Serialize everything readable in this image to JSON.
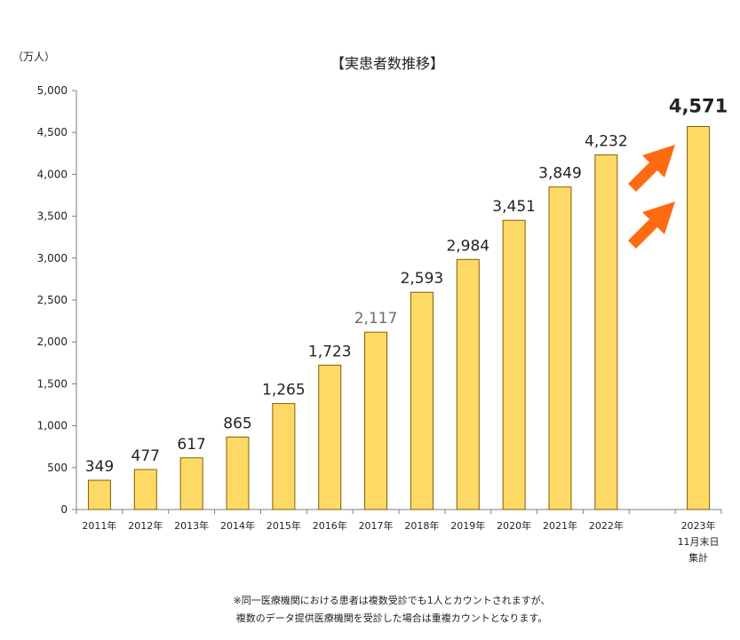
{
  "chart_data": {
    "type": "bar",
    "title": "【実患者数推移】",
    "unit_label": "（万人）",
    "ylim": [
      0,
      5000
    ],
    "yticks": [
      "0",
      "500",
      "1,000",
      "1,500",
      "2,000",
      "2,500",
      "3,000",
      "3,500",
      "4,000",
      "4,500",
      "5,000"
    ],
    "categories": [
      [
        "2011年"
      ],
      [
        "2012年"
      ],
      [
        "2013年"
      ],
      [
        "2014年"
      ],
      [
        "2015年"
      ],
      [
        "2016年"
      ],
      [
        "2017年"
      ],
      [
        "2018年"
      ],
      [
        "2019年"
      ],
      [
        "2020年"
      ],
      [
        "2021年"
      ],
      [
        "2022年"
      ],
      [
        ""
      ],
      [
        "2023年",
        "11月末日",
        "集計"
      ]
    ],
    "values": [
      349,
      477,
      617,
      865,
      1265,
      1723,
      2117,
      2593,
      2984,
      3451,
      3849,
      4232,
      null,
      4571
    ],
    "data_labels": [
      "349",
      "477",
      "617",
      "865",
      "1,265",
      "1,723",
      "2,117",
      "2,593",
      "2,984",
      "3,451",
      "3,849",
      "4,232",
      "",
      "4,571"
    ],
    "highlight_index": 13,
    "highlight_color": "#ee1111",
    "bar_color": "#ffd966",
    "bar_edge_color": "#7f6000",
    "arrow_color": "#ff6a13",
    "grid": false,
    "legend": "none"
  },
  "footnote": [
    "※同一医療機関における患者は複数受診でも1人とカウントされますが、",
    "複数のデータ提供医療機関を受診した場合は重複カウントとなります。"
  ]
}
